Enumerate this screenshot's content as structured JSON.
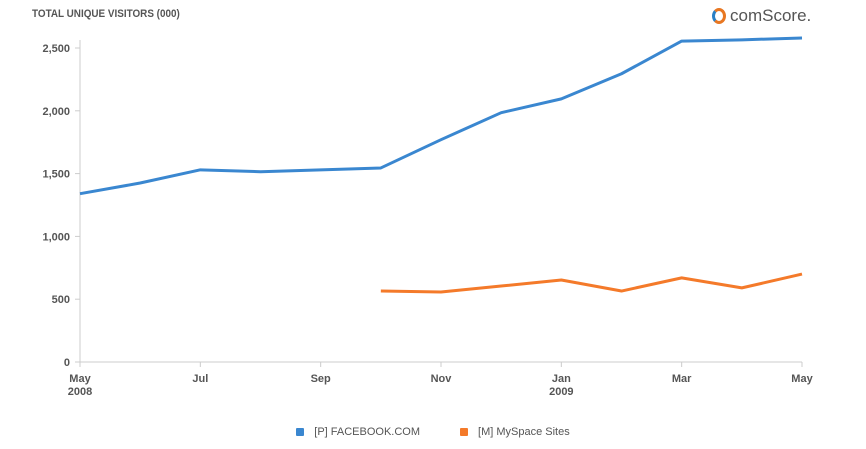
{
  "header": {
    "title": "TOTAL UNIQUE VISITORS (000)",
    "logo_text": "comScore."
  },
  "chart_data": {
    "type": "line",
    "title": "TOTAL UNIQUE VISITORS (000)",
    "xlabel": "",
    "ylabel": "",
    "ylim": [
      0,
      2500
    ],
    "yticks": [
      0,
      500,
      1000,
      1500,
      2000,
      2500
    ],
    "ytick_labels": [
      "0",
      "500",
      "1,000",
      "1,500",
      "2,000",
      "2,500"
    ],
    "x": [
      "May 2008",
      "Jun 2008",
      "Jul 2008",
      "Aug 2008",
      "Sep 2008",
      "Oct 2008",
      "Nov 2008",
      "Dec 2008",
      "Jan 2009",
      "Feb 2009",
      "Mar 2009",
      "Apr 2009",
      "May 2009"
    ],
    "xtick_labels": [
      {
        "index": 0,
        "label": "May",
        "sub": "2008"
      },
      {
        "index": 2,
        "label": "Jul",
        "sub": ""
      },
      {
        "index": 4,
        "label": "Sep",
        "sub": ""
      },
      {
        "index": 6,
        "label": "Nov",
        "sub": ""
      },
      {
        "index": 8,
        "label": "Jan",
        "sub": "2009"
      },
      {
        "index": 10,
        "label": "Mar",
        "sub": ""
      },
      {
        "index": 12,
        "label": "May",
        "sub": ""
      }
    ],
    "grid": false,
    "legend_position": "bottom",
    "series": [
      {
        "name": "[P] FACEBOOK.COM",
        "color": "#3a87d0",
        "values": [
          1340,
          1425,
          1530,
          1515,
          1530,
          1545,
          1770,
          1985,
          2095,
          2295,
          2555,
          2565,
          2580
        ]
      },
      {
        "name": "[M] MySpace Sites",
        "color": "#f47a2a",
        "values": [
          null,
          null,
          null,
          null,
          null,
          565,
          557,
          605,
          653,
          565,
          670,
          590,
          700
        ]
      }
    ]
  }
}
